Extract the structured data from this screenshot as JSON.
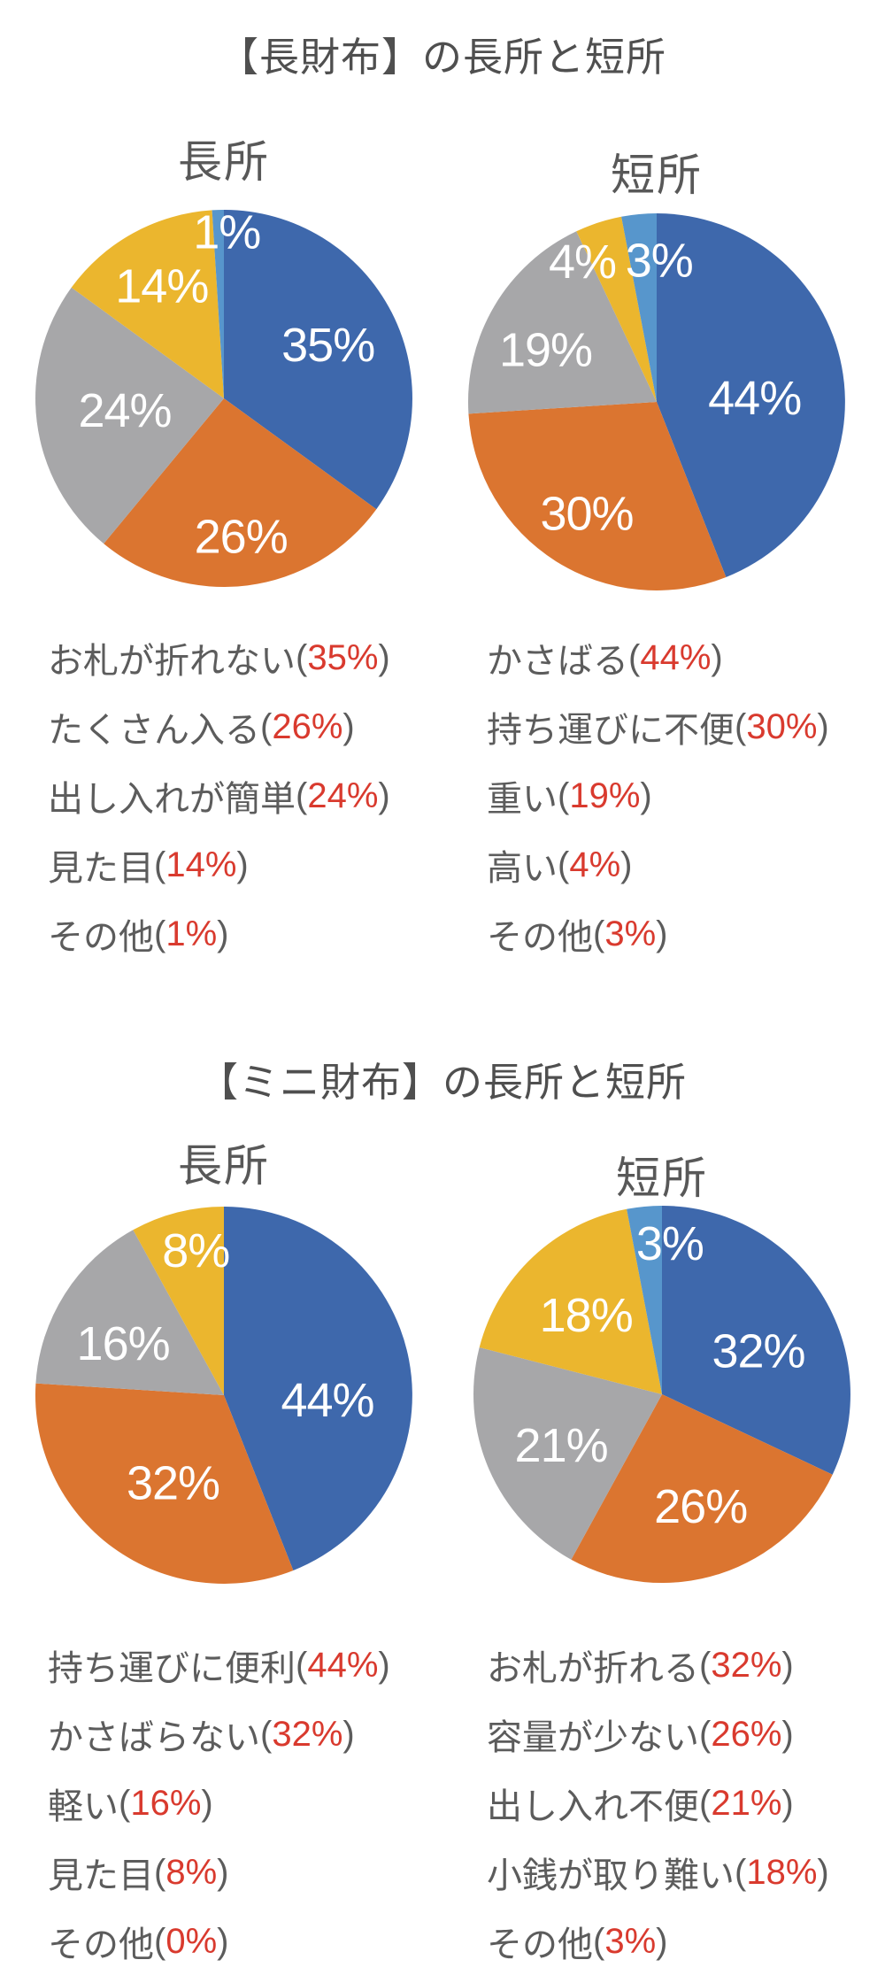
{
  "ui": {
    "paren_open": "(",
    "paren_close": ")"
  },
  "colors": {
    "blue": "#3E68AC",
    "orange": "#DB7530",
    "gray": "#A7A7A9",
    "yellow": "#EBB62E",
    "light_blue": "#5796CC",
    "percent_red": "#D93A2E",
    "text_gray": "#5C5C5C",
    "title_gray": "#4F4F4F",
    "pie_label_white": "#FFFFFF"
  },
  "section_titles": [
    "【長財布】の長所と短所",
    "【ミニ財布】の長所と短所"
  ],
  "chart_data": [
    {
      "type": "pie",
      "section": 0,
      "position": "left",
      "subtitle": "長所",
      "labels": [
        "お札が折れない",
        "たくさん入る",
        "出し入れが簡単",
        "見た目",
        "その他"
      ],
      "values": [
        35,
        26,
        24,
        14,
        1
      ],
      "pcts": [
        "35%",
        "26%",
        "24%",
        "14%",
        "1%"
      ],
      "colors": [
        "#3E68AC",
        "#DB7530",
        "#A7A7A9",
        "#EBB62E",
        "#5796CC"
      ],
      "start_angle": 0,
      "direction": "clockwise",
      "labels_inside": true,
      "label_layout": [
        {
          "a": 63,
          "r": 0.62
        },
        {
          "a": 173,
          "r": 0.74
        },
        {
          "a": 263,
          "r": 0.53
        },
        {
          "a": 331,
          "r": 0.68
        },
        {
          "a": 1,
          "r": 0.88
        }
      ]
    },
    {
      "type": "pie",
      "section": 0,
      "position": "right",
      "subtitle": "短所",
      "labels": [
        "かさばる",
        "持ち運びに不便",
        "重い",
        "高い",
        "その他"
      ],
      "values": [
        44,
        30,
        19,
        4,
        3
      ],
      "pcts": [
        "44%",
        "30%",
        "19%",
        "4%",
        "3%"
      ],
      "colors": [
        "#3E68AC",
        "#DB7530",
        "#A7A7A9",
        "#EBB62E",
        "#5796CC"
      ],
      "start_angle": 0,
      "direction": "clockwise",
      "labels_inside": true,
      "label_layout": [
        {
          "a": 88,
          "r": 0.52
        },
        {
          "a": 212,
          "r": 0.7
        },
        {
          "a": 295,
          "r": 0.65
        },
        {
          "a": 332,
          "r": 0.84
        },
        {
          "a": 1,
          "r": 0.75
        }
      ]
    },
    {
      "type": "pie",
      "section": 1,
      "position": "left",
      "subtitle": "長所",
      "labels": [
        "持ち運びに便利",
        "かさばらない",
        "軽い",
        "見た目",
        "その他"
      ],
      "values": [
        44,
        32,
        16,
        8,
        0
      ],
      "pcts": [
        "44%",
        "32%",
        "16%",
        "8%",
        "0%"
      ],
      "colors": [
        "#3E68AC",
        "#DB7530",
        "#A7A7A9",
        "#EBB62E",
        "#5796CC"
      ],
      "start_angle": 0,
      "direction": "clockwise",
      "labels_inside": true,
      "label_layout": [
        {
          "a": 93,
          "r": 0.55
        },
        {
          "a": 210,
          "r": 0.54
        },
        {
          "a": 297,
          "r": 0.6
        },
        {
          "a": 349,
          "r": 0.78
        },
        null
      ]
    },
    {
      "type": "pie",
      "section": 1,
      "position": "right",
      "subtitle": "短所",
      "labels": [
        "お札が折れる",
        "容量が少ない",
        "出し入れ不便",
        "小銭が取り難い",
        "その他"
      ],
      "values": [
        32,
        26,
        21,
        18,
        3
      ],
      "pcts": [
        "32%",
        "26%",
        "21%",
        "18%",
        "3%"
      ],
      "colors": [
        "#3E68AC",
        "#DB7530",
        "#A7A7A9",
        "#EBB62E",
        "#5796CC"
      ],
      "start_angle": 0,
      "direction": "clockwise",
      "labels_inside": true,
      "label_layout": [
        {
          "a": 66,
          "r": 0.56
        },
        {
          "a": 161,
          "r": 0.63
        },
        {
          "a": 243,
          "r": 0.6
        },
        {
          "a": 316,
          "r": 0.58
        },
        {
          "a": 3,
          "r": 0.8
        }
      ]
    }
  ]
}
